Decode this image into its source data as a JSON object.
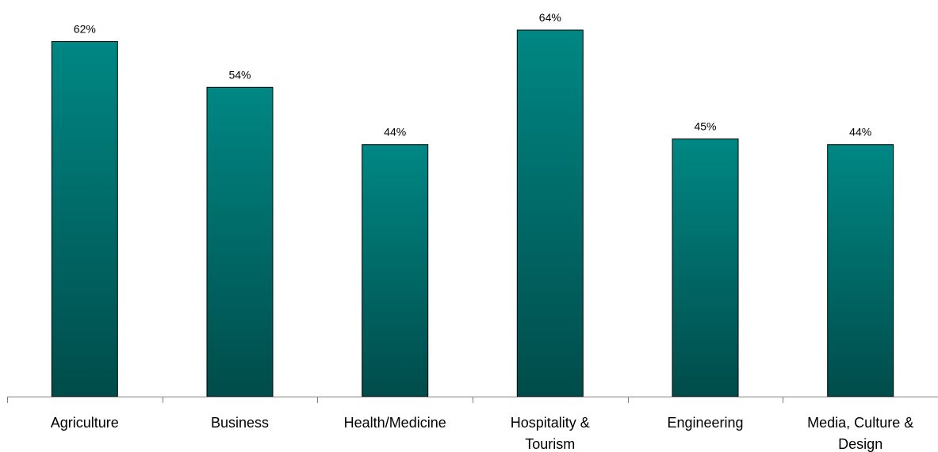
{
  "chart_data": {
    "type": "bar",
    "categories": [
      "Agriculture",
      "Business",
      "Health/Medicine",
      "Hospitality & Tourism",
      "Engineering",
      "Media, Culture & Design"
    ],
    "category_label_lines": [
      [
        "Agriculture"
      ],
      [
        "Business"
      ],
      [
        "Health/Medicine"
      ],
      [
        "Hospitality &",
        "Tourism"
      ],
      [
        "Engineering"
      ],
      [
        "Media, Culture &",
        "Design"
      ]
    ],
    "values": [
      62,
      54,
      44,
      64,
      45,
      44
    ],
    "value_labels": [
      "62%",
      "54%",
      "44%",
      "64%",
      "45%",
      "44%"
    ],
    "title": "",
    "xlabel": "",
    "ylabel": "",
    "ylim": [
      0,
      64
    ],
    "grid": false,
    "legend": "none",
    "colors": {
      "bar_top": "#008784",
      "bar_bottom": "#004c4a",
      "bar_outline": "#000000",
      "axis": "#808080"
    }
  }
}
